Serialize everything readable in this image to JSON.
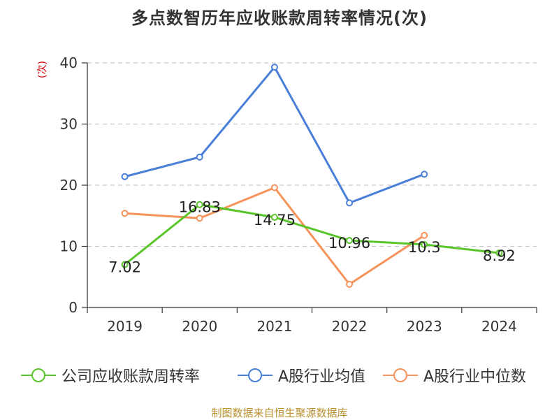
{
  "title": "多点数智历年应收账款周转率情况(次)",
  "unit_label": "(次)",
  "source": "制图数据来自恒生聚源数据库",
  "chart_data": {
    "type": "line",
    "categories": [
      "2019",
      "2020",
      "2021",
      "2022",
      "2023",
      "2024"
    ],
    "ylim": [
      0,
      40
    ],
    "yticks": [
      0,
      10,
      20,
      30,
      40
    ],
    "grid": true,
    "legend_position": "bottom",
    "series": [
      {
        "name": "公司应收账款周转率",
        "color": "#5ac52a",
        "values": [
          7.02,
          16.83,
          14.75,
          10.96,
          10.3,
          8.92
        ],
        "labels": [
          "7.02",
          "16.83",
          "14.75",
          "10.96",
          "10.3",
          "8.92"
        ]
      },
      {
        "name": "A股行业均值",
        "color": "#4a7fd8",
        "values": [
          21.4,
          24.6,
          39.3,
          17.1,
          21.8,
          null
        ]
      },
      {
        "name": "A股行业中位数",
        "color": "#f5935b",
        "values": [
          15.4,
          14.6,
          19.6,
          3.8,
          11.8,
          null
        ]
      }
    ]
  }
}
